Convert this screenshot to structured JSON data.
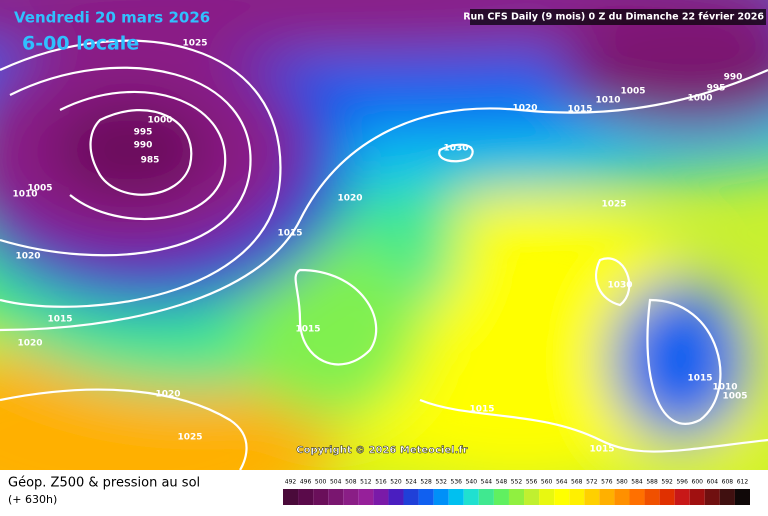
{
  "header": {
    "title": "Vendredi 20 mars 2026",
    "time": "6-00 locale",
    "run": "Run CFS Daily (9 mois) 0 Z du Dimanche 22 février 2026"
  },
  "isobar_labels": [
    "1025",
    "1000",
    "995",
    "990",
    "985",
    "1005",
    "1010",
    "1020",
    "1015",
    "1020",
    "1020",
    "1015",
    "1015",
    "1030",
    "1020",
    "1015",
    "1010",
    "1005",
    "1000",
    "995",
    "990",
    "1025",
    "1030",
    "1015",
    "1020",
    "1025",
    "1015",
    "1010",
    "1005",
    "1015"
  ],
  "copyright": "Copyright © 2026 Meteociel.fr",
  "legend": {
    "title": "Géop. Z500 & pression au sol",
    "lead": "(+ 630h)",
    "values": [
      492,
      496,
      500,
      504,
      508,
      512,
      516,
      520,
      524,
      528,
      532,
      536,
      540,
      544,
      548,
      552,
      556,
      560,
      564,
      568,
      572,
      576,
      580,
      584,
      588,
      592,
      596,
      600,
      604,
      608,
      612
    ],
    "colors": [
      "#4a0a3a",
      "#5a0a4a",
      "#6a0f5a",
      "#7a1670",
      "#8a1e86",
      "#96209a",
      "#7a1aa8",
      "#4a1ec0",
      "#2040d8",
      "#1060f0",
      "#0090f8",
      "#00c0f0",
      "#20e0d0",
      "#40e890",
      "#60f060",
      "#90f040",
      "#c0f030",
      "#e8f810",
      "#ffff00",
      "#fff000",
      "#ffd000",
      "#ffb000",
      "#ff9000",
      "#ff7000",
      "#f05000",
      "#e03000",
      "#c81818",
      "#a01010",
      "#701010",
      "#401010",
      "#100808"
    ]
  }
}
